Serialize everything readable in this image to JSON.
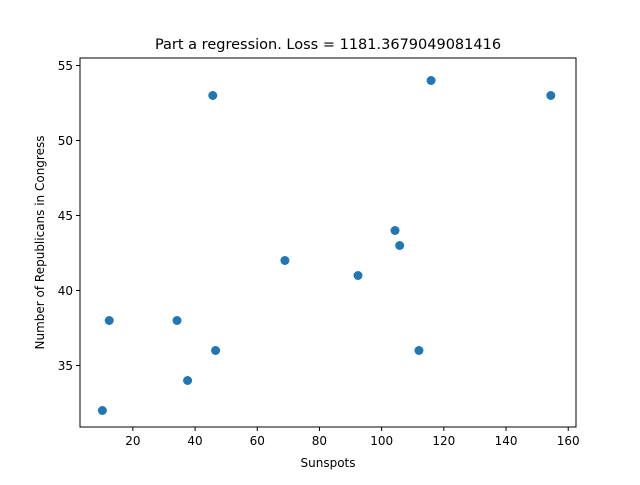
{
  "chart_data": {
    "type": "scatter",
    "title": "Part a regression. Loss = 1181.3679049081416",
    "xlabel": "Sunspots",
    "ylabel": "Number of Republicans in Congress",
    "xlim": [
      3,
      162.5
    ],
    "ylim": [
      30.9,
      55.5
    ],
    "xticks": [
      20,
      40,
      60,
      80,
      100,
      120,
      140,
      160
    ],
    "yticks": [
      35,
      40,
      45,
      50,
      55
    ],
    "grid": false,
    "marker_color": "#1f77b4",
    "points": [
      {
        "x": 10.2,
        "y": 32
      },
      {
        "x": 12.4,
        "y": 38
      },
      {
        "x": 34.2,
        "y": 38
      },
      {
        "x": 37.6,
        "y": 34
      },
      {
        "x": 45.7,
        "y": 53
      },
      {
        "x": 46.6,
        "y": 36
      },
      {
        "x": 68.9,
        "y": 42
      },
      {
        "x": 92.4,
        "y": 41
      },
      {
        "x": 104.3,
        "y": 44
      },
      {
        "x": 105.8,
        "y": 43
      },
      {
        "x": 112.0,
        "y": 36
      },
      {
        "x": 115.9,
        "y": 54
      },
      {
        "x": 154.4,
        "y": 53
      }
    ]
  }
}
